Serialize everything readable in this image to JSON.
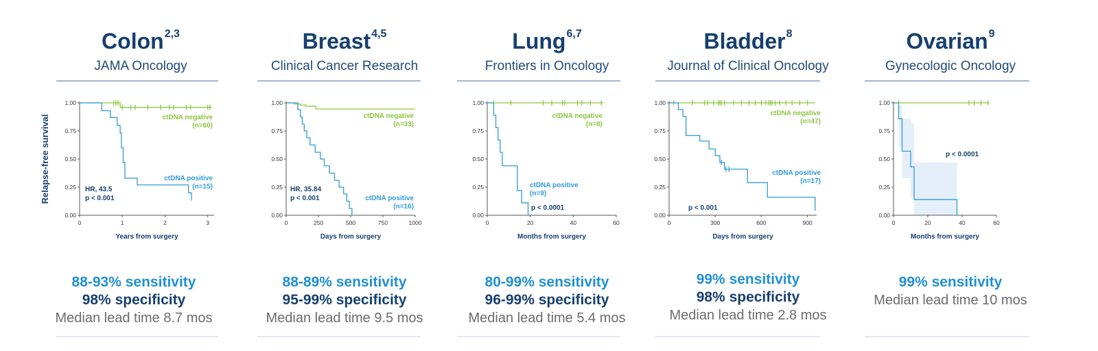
{
  "panels": [
    {
      "cancer": "Colon",
      "refs": "2,3",
      "journal": "JAMA Oncology",
      "sensitivity": "88-93% sensitivity",
      "specificity": "98% specificity",
      "lead_time": "Median lead time 8.7 mos"
    },
    {
      "cancer": "Breast",
      "refs": "4,5",
      "journal": "Clinical Cancer Research",
      "sensitivity": "88-89% sensitivity",
      "specificity": "95-99% specificity",
      "lead_time": "Median lead time 9.5 mos"
    },
    {
      "cancer": "Lung",
      "refs": "6,7",
      "journal": "Frontiers in Oncology",
      "sensitivity": "80-99% sensitivity",
      "specificity": "96-99% specificity",
      "lead_time": "Median lead time 5.4 mos"
    },
    {
      "cancer": "Bladder",
      "refs": "8",
      "journal": "Journal of Clinical Oncology",
      "sensitivity": "99% sensitivity",
      "specificity": "98% specificity",
      "lead_time": "Median lead time 2.8 mos"
    },
    {
      "cancer": "Ovarian",
      "refs": "9",
      "journal": "Gynecologic Oncology",
      "sensitivity": "99% sensitivity",
      "specificity": "",
      "lead_time": "Median lead time 10 mos"
    }
  ],
  "colors": {
    "negative": "#8cc63f",
    "positive": "#2f9bd8",
    "ci_band": "#e5eff9",
    "axis": "#555555",
    "annotation": "#163f6e"
  },
  "chart_data": [
    {
      "type": "line",
      "title": "",
      "xlabel": "Years from surgery",
      "ylabel": "Relapse-free survival",
      "xlim": [
        0,
        3.15
      ],
      "ylim": [
        0,
        1
      ],
      "x_ticks": [
        0,
        1,
        2,
        3
      ],
      "y_ticks": [
        0,
        0.25,
        0.5,
        0.75,
        1
      ],
      "series": [
        {
          "name": "ctDNA negative",
          "n_label": "(n=60)",
          "color": "#8cc63f",
          "x": [
            0,
            0.95,
            3.1
          ],
          "y": [
            1.0,
            0.96,
            0.96
          ],
          "censor_x": [
            0.8,
            0.85,
            0.9,
            1.0,
            1.2,
            1.3,
            1.6,
            1.9,
            2.1,
            2.2,
            2.5,
            2.6,
            3.0,
            3.05
          ]
        },
        {
          "name": "ctDNA positive",
          "n_label": "(n=15)",
          "color": "#2f9bd8",
          "x": [
            0,
            0.52,
            0.72,
            0.88,
            0.95,
            0.98,
            1.02,
            1.06,
            1.35,
            2.55,
            2.62
          ],
          "y": [
            1.0,
            0.93,
            0.87,
            0.8,
            0.73,
            0.6,
            0.47,
            0.33,
            0.27,
            0.2,
            0.13
          ]
        }
      ],
      "annotations": [
        "HR, 43.5",
        "p < 0.001"
      ],
      "show_ylabel": true
    },
    {
      "type": "line",
      "title": "",
      "xlabel": "Days from surgery",
      "ylabel": "",
      "xlim": [
        0,
        1000
      ],
      "ylim": [
        0,
        1
      ],
      "x_ticks": [
        0,
        250,
        500,
        750,
        1000
      ],
      "y_ticks": [
        0,
        0.25,
        0.5,
        0.75,
        1
      ],
      "series": [
        {
          "name": "ctDNA negative",
          "n_label": "(n=33)",
          "color": "#8cc63f",
          "x": [
            0,
            60,
            110,
            150,
            230,
            1000
          ],
          "y": [
            1.0,
            0.99,
            0.98,
            0.97,
            0.945,
            0.945
          ],
          "censor_x": []
        },
        {
          "name": "ctDNA positive",
          "n_label": "(n=16)",
          "color": "#2f9bd8",
          "x": [
            0,
            90,
            110,
            125,
            140,
            160,
            185,
            225,
            265,
            295,
            335,
            375,
            410,
            445,
            470,
            490,
            510
          ],
          "y": [
            1.0,
            0.94,
            0.875,
            0.81,
            0.75,
            0.69,
            0.625,
            0.56,
            0.5,
            0.44,
            0.375,
            0.31,
            0.25,
            0.19,
            0.125,
            0.06,
            0.0
          ]
        }
      ],
      "annotations": [
        "HR, 35.84",
        "p < 0.001"
      ],
      "show_ylabel": false
    },
    {
      "type": "line",
      "title": "",
      "xlabel": "Months from surgery",
      "ylabel": "",
      "xlim": [
        0,
        60
      ],
      "ylim": [
        0,
        1
      ],
      "x_ticks": [
        0,
        20,
        40,
        60
      ],
      "y_ticks": [
        0,
        0.25,
        0.5,
        0.75,
        1
      ],
      "series": [
        {
          "name": "ctDNA negative",
          "n_label": "(n=8)",
          "color": "#8cc63f",
          "x": [
            0,
            54
          ],
          "y": [
            1.0,
            1.0
          ],
          "censor_x": [
            3,
            11,
            26,
            30,
            35,
            36,
            42,
            44,
            48,
            53
          ]
        },
        {
          "name": "ctDNA positive",
          "n_label": "(n=9)",
          "color": "#2f9bd8",
          "x": [
            0,
            3,
            4,
            5,
            6,
            7,
            9,
            14,
            16,
            19
          ],
          "y": [
            1.0,
            0.89,
            0.78,
            0.67,
            0.56,
            0.44,
            0.44,
            0.22,
            0.11,
            0.0
          ]
        }
      ],
      "annotations": [
        "p < 0.0001"
      ],
      "show_ylabel": false
    },
    {
      "type": "line",
      "title": "",
      "xlabel": "Days from surgery",
      "ylabel": "",
      "xlim": [
        0,
        960
      ],
      "ylim": [
        0,
        1
      ],
      "x_ticks": [
        0,
        300,
        600,
        900
      ],
      "y_ticks": [
        0,
        0.25,
        0.5,
        0.75,
        1
      ],
      "series": [
        {
          "name": "ctDNA negative",
          "n_label": "(n=47)",
          "color": "#8cc63f",
          "x": [
            0,
            950
          ],
          "y": [
            1.0,
            1.0
          ],
          "censor_x": [
            30,
            150,
            230,
            250,
            290,
            320,
            330,
            340,
            360,
            420,
            470,
            520,
            560,
            600,
            630,
            650,
            660,
            670,
            690,
            720,
            760,
            800,
            850,
            900
          ]
        },
        {
          "name": "ctDNA positive",
          "n_label": "(n=17)",
          "color": "#2f9bd8",
          "x": [
            0,
            60,
            90,
            110,
            200,
            260,
            300,
            330,
            360,
            390,
            510,
            640,
            950
          ],
          "y": [
            1.0,
            0.94,
            0.88,
            0.71,
            0.66,
            0.59,
            0.53,
            0.47,
            0.41,
            0.41,
            0.29,
            0.16,
            0.04
          ],
          "censor_x": [
            340,
            370,
            390
          ]
        }
      ],
      "annotations": [
        "p < 0.001"
      ],
      "show_ylabel": false
    },
    {
      "type": "line",
      "title": "",
      "xlabel": "Months from surgery",
      "ylabel": "",
      "xlim": [
        0,
        60
      ],
      "ylim": [
        0,
        1
      ],
      "x_ticks": [
        0,
        20,
        40,
        60
      ],
      "y_ticks": [
        0,
        0.25,
        0.5,
        0.75,
        1
      ],
      "series": [
        {
          "name": "",
          "n_label": "",
          "color": "#8cc63f",
          "x": [
            0,
            56
          ],
          "y": [
            1.0,
            1.0
          ],
          "censor_x": [
            3,
            44,
            47,
            51,
            55
          ]
        },
        {
          "name": "",
          "n_label": "",
          "color": "#2f9bd8",
          "x": [
            0,
            3,
            5,
            10,
            12,
            37
          ],
          "y": [
            1.0,
            0.86,
            0.57,
            0.43,
            0.14,
            0.0
          ]
        }
      ],
      "ci_band": {
        "x": [
          0,
          3,
          5,
          10,
          12,
          37
        ],
        "lower": [
          1.0,
          0.6,
          0.33,
          0.16,
          0.0,
          0.0
        ],
        "upper": [
          1.0,
          0.98,
          0.86,
          0.82,
          0.47,
          0.47
        ]
      },
      "annotations": [
        "p < 0.0001"
      ],
      "show_ylabel": false
    }
  ]
}
